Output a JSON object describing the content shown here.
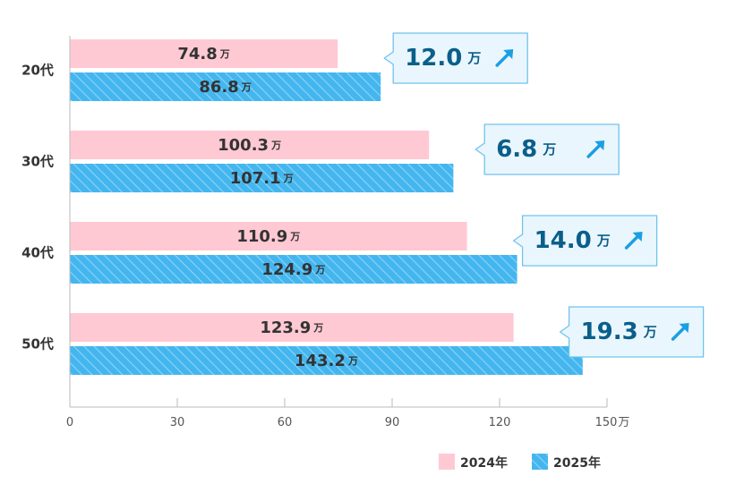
{
  "chart_data": {
    "type": "bar",
    "orientation": "horizontal",
    "categories": [
      "20代",
      "30代",
      "40代",
      "50代"
    ],
    "series": [
      {
        "name": "2024年",
        "values": [
          74.8,
          100.3,
          110.9,
          123.9
        ],
        "labels": [
          "74.8",
          "100.3",
          "110.9",
          "123.9"
        ]
      },
      {
        "name": "2025年",
        "values": [
          86.8,
          107.1,
          124.9,
          143.2
        ],
        "labels": [
          "86.8",
          "107.1",
          "124.9",
          "143.2"
        ]
      }
    ],
    "value_unit": "万",
    "differences": [
      "12.0",
      "6.8",
      "14.0",
      "19.3"
    ],
    "xlim": [
      0,
      150
    ],
    "x_ticks": [
      "0",
      "30",
      "60",
      "90",
      "120",
      "150"
    ],
    "x_unit": "万",
    "grid": false,
    "legend_position": "bottom-right",
    "colors": {
      "2024": "#ffc9d4",
      "2025": "#44b6ef",
      "2025_stripe": "#8fd3f5",
      "callout_fill": "#eaf6fd",
      "callout_border": "#6fc3ee",
      "callout_text": "#0a5f8a",
      "arrow": "#1a9fe3"
    }
  }
}
